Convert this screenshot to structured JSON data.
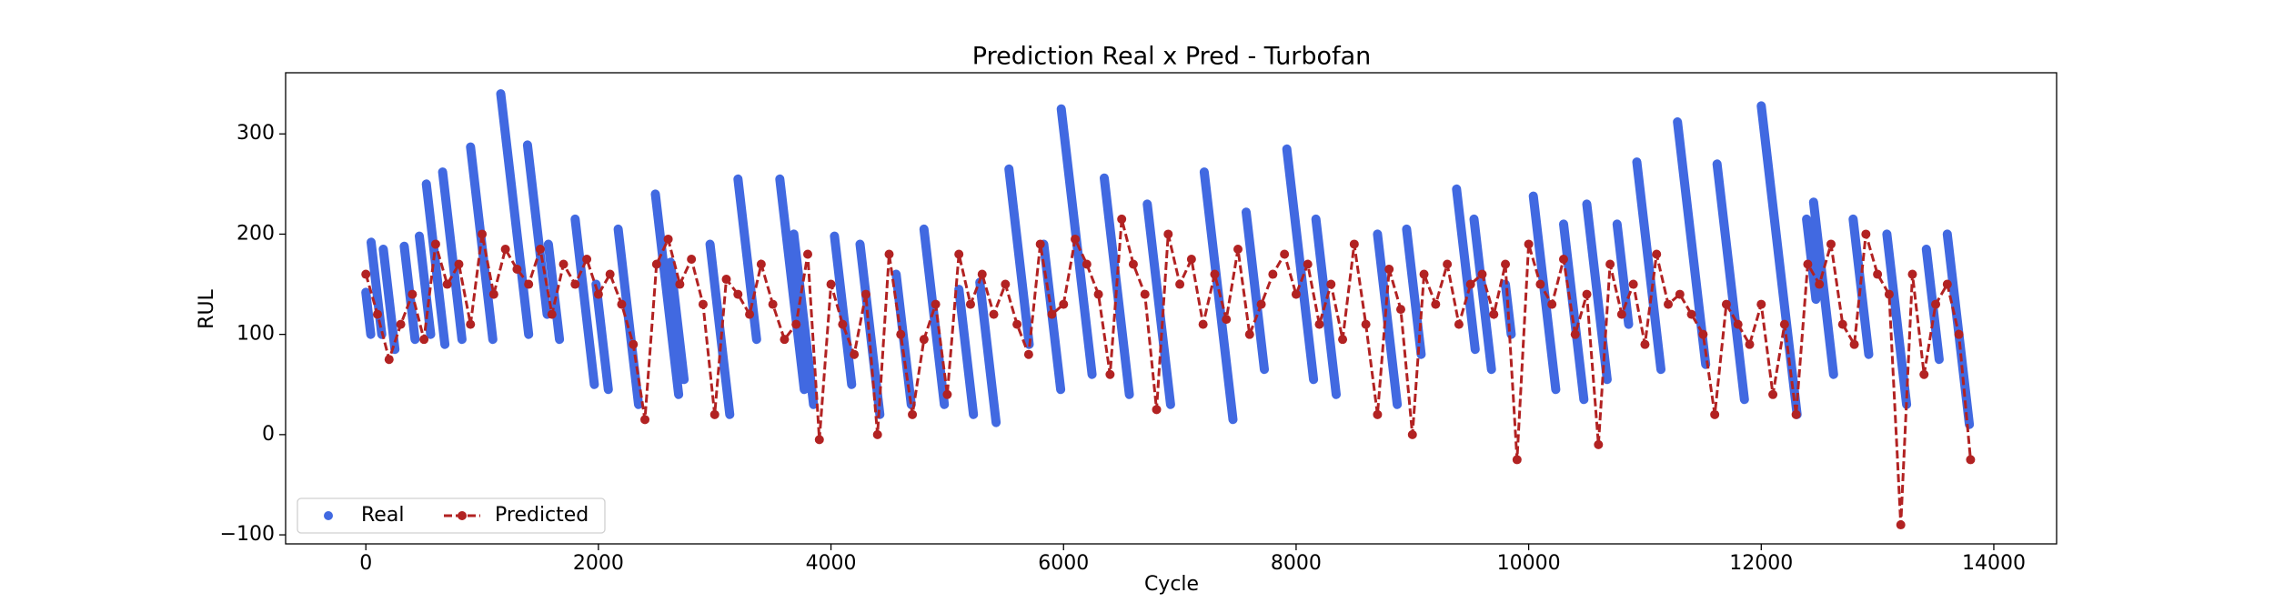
{
  "chart_data": {
    "type": "line",
    "title": "Prediction Real x Pred - Turbofan",
    "x_label": "Cycle",
    "y_label": "RUL",
    "xlim": [
      -690,
      14540
    ],
    "ylim": [
      -109,
      361
    ],
    "xticks": [
      0,
      2000,
      4000,
      6000,
      8000,
      10000,
      12000,
      14000
    ],
    "yticks": [
      {
        "value": -100,
        "label": "−100"
      },
      0,
      100,
      200,
      300
    ],
    "legend": "lower left",
    "series": [
      {
        "name": "Real",
        "color": "#4169e1",
        "marker": "o",
        "linestyle": "none",
        "x": [
          0,
          42,
          null,
          45,
          137,
          null,
          150,
          250,
          null,
          330,
          423,
          null,
          460,
          558,
          null,
          520,
          680,
          null,
          660,
          827,
          null,
          900,
          1092,
          null,
          1160,
          1400,
          null,
          1390,
          1559,
          null,
          1570,
          1665,
          null,
          1800,
          1965,
          null,
          1980,
          2085,
          null,
          2170,
          2345,
          null,
          2490,
          2690,
          null,
          2620,
          2737,
          null,
          2960,
          3130,
          null,
          3200,
          3360,
          null,
          3560,
          3770,
          null,
          3680,
          3850,
          null,
          4030,
          4178,
          null,
          4250,
          4420,
          null,
          4560,
          4690,
          null,
          4800,
          4975,
          null,
          5100,
          5225,
          null,
          5280,
          5420,
          null,
          5530,
          5705,
          null,
          5830,
          5975,
          null,
          5980,
          6245,
          null,
          6350,
          6566,
          null,
          6720,
          6920,
          null,
          7210,
          7457,
          null,
          7570,
          7727,
          null,
          7920,
          8150,
          null,
          8170,
          8345,
          null,
          8700,
          8870,
          null,
          8950,
          9075,
          null,
          9380,
          9540,
          null,
          9530,
          9680,
          null,
          9800,
          9850,
          null,
          10040,
          10233,
          null,
          10300,
          10475,
          null,
          10500,
          10675,
          null,
          10760,
          10860,
          null,
          10930,
          11137,
          null,
          11280,
          11522,
          null,
          11620,
          11855,
          null,
          12000,
          12308,
          null,
          12390,
          12470,
          null,
          12450,
          12622,
          null,
          12790,
          12925,
          null,
          13080,
          13250,
          null,
          13420,
          13530,
          null,
          13600,
          13790
        ],
        "y": [
          142,
          100,
          null,
          192,
          100,
          null,
          185,
          85,
          null,
          188,
          95,
          null,
          198,
          100,
          null,
          250,
          90,
          null,
          262,
          95,
          null,
          287,
          95,
          null,
          340,
          100,
          null,
          289,
          120,
          null,
          190,
          95,
          null,
          215,
          50,
          null,
          150,
          45,
          null,
          205,
          30,
          null,
          240,
          40,
          null,
          172,
          55,
          null,
          190,
          20,
          null,
          255,
          95,
          null,
          255,
          45,
          null,
          200,
          30,
          null,
          198,
          50,
          null,
          190,
          20,
          null,
          160,
          30,
          null,
          205,
          30,
          null,
          145,
          20,
          null,
          152,
          12,
          null,
          265,
          90,
          null,
          190,
          45,
          null,
          325,
          60,
          null,
          256,
          40,
          null,
          230,
          30,
          null,
          262,
          15,
          null,
          222,
          65,
          null,
          285,
          55,
          null,
          215,
          40,
          null,
          200,
          30,
          null,
          205,
          80,
          null,
          245,
          85,
          null,
          215,
          65,
          null,
          150,
          100,
          null,
          238,
          45,
          null,
          210,
          35,
          null,
          230,
          55,
          null,
          210,
          110,
          null,
          272,
          65,
          null,
          312,
          70,
          null,
          270,
          35,
          null,
          328,
          20,
          null,
          215,
          135,
          null,
          232,
          60,
          null,
          215,
          80,
          null,
          200,
          30,
          null,
          185,
          75,
          null,
          200,
          10
        ]
      },
      {
        "name": "Predicted",
        "color": "#b22222",
        "marker": "o",
        "linestyle": "--",
        "x": [
          0,
          100,
          200,
          300,
          400,
          500,
          600,
          700,
          800,
          900,
          1000,
          1100,
          1200,
          1300,
          1400,
          1500,
          1600,
          1700,
          1800,
          1900,
          2000,
          2100,
          2200,
          2300,
          2400,
          2500,
          2600,
          2700,
          2800,
          2900,
          3000,
          3100,
          3200,
          3300,
          3400,
          3500,
          3600,
          3700,
          3800,
          3900,
          4000,
          4100,
          4200,
          4300,
          4400,
          4500,
          4600,
          4700,
          4800,
          4900,
          5000,
          5100,
          5200,
          5300,
          5400,
          5500,
          5600,
          5700,
          5800,
          5900,
          6000,
          6100,
          6200,
          6300,
          6400,
          6500,
          6600,
          6700,
          6800,
          6900,
          7000,
          7100,
          7200,
          7300,
          7400,
          7500,
          7600,
          7700,
          7800,
          7900,
          8000,
          8100,
          8200,
          8300,
          8400,
          8500,
          8600,
          8700,
          8800,
          8900,
          9000,
          9100,
          9200,
          9300,
          9400,
          9500,
          9600,
          9700,
          9800,
          9900,
          10000,
          10100,
          10200,
          10300,
          10400,
          10500,
          10600,
          10700,
          10800,
          10900,
          11000,
          11100,
          11200,
          11300,
          11400,
          11500,
          11600,
          11700,
          11800,
          11900,
          12000,
          12100,
          12200,
          12300,
          12400,
          12500,
          12600,
          12700,
          12800,
          12900,
          13000,
          13100,
          13200,
          13300,
          13400,
          13500,
          13600,
          13700,
          13800
        ],
        "y": [
          160,
          120,
          75,
          110,
          140,
          95,
          190,
          150,
          170,
          110,
          200,
          140,
          185,
          165,
          150,
          185,
          120,
          170,
          150,
          175,
          140,
          160,
          130,
          90,
          15,
          170,
          195,
          150,
          175,
          130,
          20,
          155,
          140,
          120,
          170,
          130,
          95,
          110,
          180,
          -5,
          150,
          110,
          80,
          140,
          0,
          180,
          100,
          20,
          95,
          130,
          40,
          180,
          130,
          160,
          120,
          150,
          110,
          80,
          190,
          120,
          130,
          195,
          170,
          140,
          60,
          215,
          170,
          140,
          25,
          200,
          150,
          175,
          110,
          160,
          115,
          185,
          100,
          130,
          160,
          180,
          140,
          170,
          110,
          150,
          95,
          190,
          110,
          20,
          165,
          125,
          0,
          160,
          130,
          170,
          110,
          150,
          160,
          120,
          170,
          -25,
          190,
          150,
          130,
          175,
          100,
          140,
          -10,
          170,
          120,
          150,
          90,
          180,
          130,
          140,
          120,
          100,
          20,
          130,
          110,
          90,
          130,
          40,
          110,
          20,
          170,
          150,
          190,
          110,
          90,
          200,
          160,
          140,
          -90,
          160,
          60,
          130,
          150,
          100,
          -25
        ]
      }
    ]
  }
}
